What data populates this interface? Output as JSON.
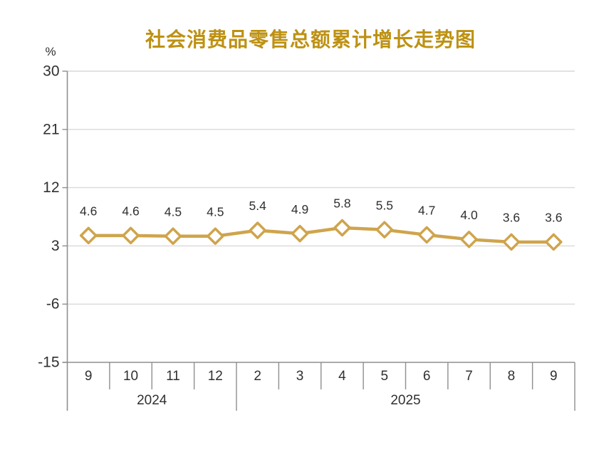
{
  "title": "社会消费品零售总额累计增长走势图",
  "unit_label": "%",
  "colors": {
    "title": "#BD9112",
    "series_line": "#CFA44C",
    "marker_fill": "#FFFFFF",
    "grid": "#D9D9D9",
    "axis": "#8F8F8F",
    "text": "#303030",
    "background": "#FFFFFF"
  },
  "chart_data": {
    "type": "line",
    "title": "社会消费品零售总额累计增长走势图",
    "ylabel": "%",
    "categories": [
      "9",
      "10",
      "11",
      "12",
      "2",
      "3",
      "4",
      "5",
      "6",
      "7",
      "8",
      "9"
    ],
    "values": [
      4.6,
      4.6,
      4.5,
      4.5,
      5.4,
      4.9,
      5.8,
      5.5,
      4.7,
      4.0,
      3.6,
      3.6
    ],
    "data_labels": [
      "4.6",
      "4.6",
      "4.5",
      "4.5",
      "5.4",
      "4.9",
      "5.8",
      "5.5",
      "4.7",
      "4.0",
      "3.6",
      "3.6"
    ],
    "year_groups": [
      {
        "label": "2024",
        "span": 4
      },
      {
        "label": "2025",
        "span": 8
      }
    ],
    "y_ticks": [
      30,
      21,
      12,
      3,
      -6,
      -15
    ],
    "ylim": [
      -15,
      30
    ],
    "grid": true,
    "legend": "none",
    "marker": "diamond-open"
  }
}
